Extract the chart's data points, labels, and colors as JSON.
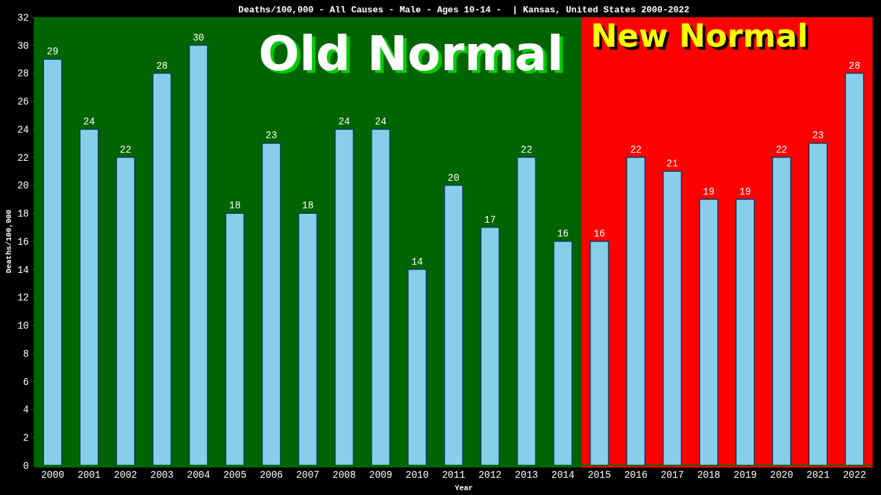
{
  "chart_data": {
    "type": "bar",
    "title": "Deaths/100,000 - All Causes - Male - Ages 10-14 -  | Kansas, United States 2000-2022",
    "xlabel": "Year",
    "ylabel": "Deaths/100,000",
    "categories": [
      "2000",
      "2001",
      "2002",
      "2003",
      "2004",
      "2005",
      "2006",
      "2007",
      "2008",
      "2009",
      "2010",
      "2011",
      "2012",
      "2013",
      "2014",
      "2015",
      "2016",
      "2017",
      "2018",
      "2019",
      "2020",
      "2021",
      "2022"
    ],
    "values": [
      29,
      24,
      22,
      28,
      30,
      18,
      23,
      18,
      24,
      24,
      14,
      20,
      17,
      22,
      16,
      16,
      22,
      21,
      19,
      19,
      22,
      23,
      28
    ],
    "color": "#87ceeb",
    "ylim": [
      0,
      32
    ],
    "yticks": [
      0,
      2,
      4,
      6,
      8,
      10,
      12,
      14,
      16,
      18,
      20,
      22,
      24,
      26,
      28,
      30,
      32
    ],
    "grid": false,
    "data_labels": true,
    "bands": [
      {
        "axis": "x",
        "from": "2000",
        "to": "2014",
        "label": "Old Normal",
        "color": "#006400"
      },
      {
        "axis": "x",
        "from": "2015",
        "to": "2022",
        "label": "New Normal",
        "color": "#ff0000"
      }
    ]
  }
}
